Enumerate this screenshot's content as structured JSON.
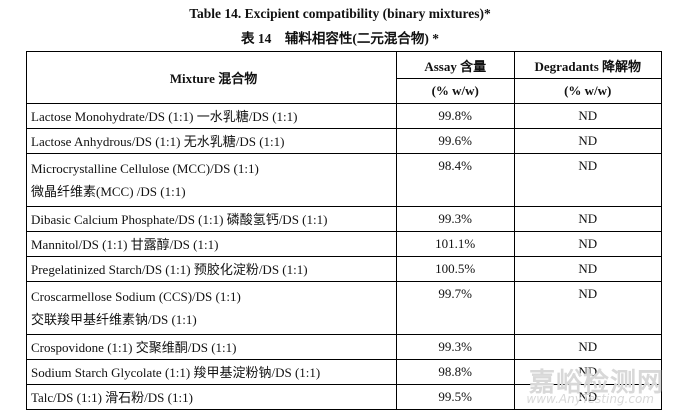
{
  "title_en": "Table 14. Excipient compatibility (binary mixtures)*",
  "title_zh": "表 14　辅料相容性(二元混合物) *",
  "headers": {
    "mixture": "Mixture 混合物",
    "assay": "Assay 含量",
    "degradants": "Degradants 降解物",
    "assay_unit": "(% w/w)",
    "degradants_unit": "(% w/w)"
  },
  "rows": [
    {
      "lines": [
        "Lactose Monohydrate/DS (1:1)  一水乳糖/DS (1:1)"
      ],
      "assay": "99.8%",
      "degradants": "ND"
    },
    {
      "lines": [
        "Lactose Anhydrous/DS (1:1)  无水乳糖/DS (1:1)"
      ],
      "assay": "99.6%",
      "degradants": "ND"
    },
    {
      "lines": [
        "Microcrystalline Cellulose (MCC)/DS (1:1)",
        "微晶纤维素(MCC) /DS (1:1)"
      ],
      "assay": "98.4%",
      "degradants": "ND"
    },
    {
      "lines": [
        "Dibasic Calcium Phosphate/DS (1:1)  磷酸氢钙/DS (1:1)"
      ],
      "assay": "99.3%",
      "degradants": "ND"
    },
    {
      "lines": [
        "Mannitol/DS (1:1)  甘露醇/DS (1:1)"
      ],
      "assay": "101.1%",
      "degradants": "ND"
    },
    {
      "lines": [
        "Pregelatinized Starch/DS (1:1)  预胶化淀粉/DS (1:1)"
      ],
      "assay": "100.5%",
      "degradants": "ND"
    },
    {
      "lines": [
        "Croscarmellose Sodium (CCS)/DS (1:1)",
        "交联羧甲基纤维素钠/DS (1:1)"
      ],
      "assay": "99.7%",
      "degradants": "ND"
    },
    {
      "lines": [
        "Crospovidone (1:1)  交聚维酮/DS (1:1)"
      ],
      "assay": "99.3%",
      "degradants": "ND"
    },
    {
      "lines": [
        "Sodium Starch Glycolate (1:1)  羧甲基淀粉钠/DS (1:1)"
      ],
      "assay": "98.8%",
      "degradants": "ND"
    },
    {
      "lines": [
        "Talc/DS (1:1)  滑石粉/DS (1:1)"
      ],
      "assay": "99.5%",
      "degradants": "ND"
    }
  ],
  "watermark": {
    "text": "嘉峪检测网",
    "sub": "www.AnyTesting.com"
  }
}
